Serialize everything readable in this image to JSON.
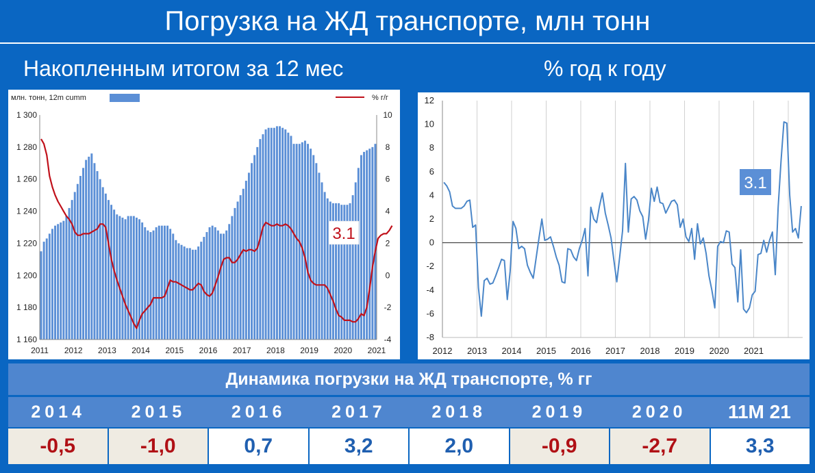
{
  "header": {
    "title": "Погрузка на ЖД транспорте, млн тонн",
    "left_subtitle": "Накопленным итогом за 12 мес",
    "right_subtitle": "% год к году"
  },
  "colors": {
    "background": "#0a66c2",
    "bar_blue": "#5b8fd6",
    "yoy_red": "#c0101a",
    "line_blue": "#4a86c8",
    "neg_cell_bg": "#efebe2",
    "pos_cell_bg": "#ffffff",
    "neg_text": "#b01015",
    "pos_text": "#1f5fb0"
  },
  "chart_data": [
    {
      "type": "bar",
      "unit_label_left": "млн. тонн, 12m cumm",
      "unit_label_right": "% г/г",
      "annotation": "3.1",
      "ylim": [
        1160,
        1300
      ],
      "yticks": [
        "1 160",
        "1 180",
        "1 200",
        "1 220",
        "1 240",
        "1 260",
        "1 280",
        "1 300"
      ],
      "ylim_right": [
        -4,
        10
      ],
      "yticks_right": [
        "-4",
        "-2",
        "0",
        "2",
        "4",
        "6",
        "8",
        "10"
      ],
      "xticks": [
        "2011",
        "2012",
        "2013",
        "2014",
        "2015",
        "2016",
        "2017",
        "2018",
        "2019",
        "2020",
        "2021"
      ],
      "bar_values": [
        1215,
        1221,
        1223,
        1226,
        1229,
        1231,
        1232,
        1233,
        1234,
        1237,
        1242,
        1247,
        1252,
        1257,
        1262,
        1267,
        1272,
        1274,
        1276,
        1270,
        1265,
        1260,
        1255,
        1251,
        1247,
        1244,
        1241,
        1238,
        1237,
        1236,
        1235,
        1237,
        1237,
        1237,
        1236,
        1235,
        1233,
        1230,
        1228,
        1227,
        1228,
        1230,
        1231,
        1231,
        1231,
        1231,
        1229,
        1226,
        1222,
        1220,
        1219,
        1218,
        1217,
        1217,
        1216,
        1216,
        1218,
        1221,
        1224,
        1227,
        1230,
        1231,
        1230,
        1228,
        1226,
        1226,
        1228,
        1232,
        1237,
        1242,
        1246,
        1250,
        1254,
        1259,
        1264,
        1270,
        1275,
        1280,
        1285,
        1288,
        1291,
        1292,
        1292,
        1292,
        1293,
        1293,
        1292,
        1291,
        1289,
        1287,
        1282,
        1282,
        1282,
        1283,
        1284,
        1282,
        1279,
        1275,
        1270,
        1264,
        1258,
        1252,
        1248,
        1246,
        1245,
        1245,
        1245,
        1244,
        1244,
        1244,
        1245,
        1250,
        1258,
        1267,
        1275,
        1277,
        1278,
        1279,
        1280,
        1282
      ],
      "yoy_values": [
        8.5,
        8.2,
        7.5,
        6.2,
        5.5,
        5.0,
        4.6,
        4.3,
        4.0,
        3.7,
        3.5,
        3.2,
        2.7,
        2.5,
        2.5,
        2.6,
        2.6,
        2.6,
        2.7,
        2.8,
        2.9,
        3.2,
        3.2,
        3.0,
        2.0,
        1.0,
        0.3,
        -0.3,
        -0.8,
        -1.3,
        -1.8,
        -2.2,
        -2.6,
        -3.0,
        -3.3,
        -2.8,
        -2.4,
        -2.2,
        -2.0,
        -1.8,
        -1.4,
        -1.4,
        -1.4,
        -1.4,
        -1.3,
        -0.8,
        -0.3,
        -0.4,
        -0.4,
        -0.5,
        -0.6,
        -0.7,
        -0.8,
        -0.9,
        -0.9,
        -0.7,
        -0.5,
        -0.6,
        -1.0,
        -1.2,
        -1.3,
        -1.1,
        -0.6,
        -0.1,
        0.5,
        1.0,
        1.1,
        1.1,
        0.8,
        0.8,
        1.0,
        1.3,
        1.6,
        1.5,
        1.6,
        1.6,
        1.5,
        1.7,
        2.3,
        3.0,
        3.3,
        3.2,
        3.1,
        3.1,
        3.2,
        3.1,
        3.1,
        3.2,
        3.1,
        2.9,
        2.6,
        2.3,
        2.1,
        1.7,
        1.1,
        0.2,
        -0.3,
        -0.5,
        -0.6,
        -0.6,
        -0.6,
        -0.6,
        -0.8,
        -1.2,
        -1.6,
        -2.1,
        -2.5,
        -2.6,
        -2.8,
        -2.8,
        -2.8,
        -2.9,
        -2.9,
        -2.7,
        -2.4,
        -2.5,
        -2.0,
        -0.8,
        0.5,
        1.5,
        2.3,
        2.5,
        2.6,
        2.6,
        2.8,
        3.1
      ]
    },
    {
      "type": "line",
      "annotation": "3.1",
      "ylim": [
        -8,
        12
      ],
      "yticks": [
        "-8",
        "-6",
        "-4",
        "-2",
        "0",
        "2",
        "4",
        "6",
        "8",
        "10",
        "12"
      ],
      "xticks": [
        "2012",
        "2013",
        "2014",
        "2015",
        "2016",
        "2017",
        "2018",
        "2019",
        "2020",
        "2021"
      ],
      "values": [
        5.1,
        4.8,
        4.3,
        3.1,
        2.9,
        2.9,
        2.9,
        3.1,
        3.5,
        3.6,
        1.3,
        1.5,
        -3.8,
        -6.2,
        -3.2,
        -3.0,
        -3.5,
        -3.4,
        -2.8,
        -2.1,
        -1.4,
        -1.5,
        -4.8,
        -2.4,
        1.8,
        1.2,
        -0.5,
        -0.3,
        -0.5,
        -1.9,
        -2.5,
        -3.0,
        -1.3,
        0.4,
        2.0,
        0.2,
        0.3,
        0.5,
        -0.3,
        -1.2,
        -1.9,
        -3.3,
        -3.4,
        -0.5,
        -0.6,
        -1.2,
        -1.5,
        -0.5,
        0.2,
        1.2,
        -2.8,
        3.0,
        2.0,
        1.7,
        3.1,
        4.2,
        2.5,
        1.5,
        0.4,
        -1.5,
        -3.3,
        -1.2,
        1.0,
        6.7,
        0.9,
        3.7,
        3.9,
        3.6,
        2.7,
        2.2,
        0.3,
        1.9,
        4.6,
        3.5,
        4.7,
        3.4,
        3.3,
        2.5,
        3.0,
        3.5,
        3.6,
        3.2,
        1.3,
        2.0,
        0.5,
        0.1,
        1.2,
        -1.4,
        1.6,
        -0.1,
        0.4,
        -0.9,
        -2.8,
        -4.0,
        -5.5,
        -0.3,
        0.1,
        0.0,
        1.0,
        0.9,
        -1.8,
        -2.1,
        -5.0,
        -0.6,
        -5.6,
        -5.9,
        -5.5,
        -4.4,
        -4.1,
        -1.0,
        -0.9,
        0.2,
        -0.8,
        0.2,
        0.9,
        -2.7,
        3.0,
        6.9,
        10.2,
        10.1,
        4.0,
        0.9,
        1.2,
        0.4,
        3.1
      ]
    }
  ],
  "dynamics": {
    "title": "Динамика погрузки на ЖД транспорте, % гг",
    "periods": [
      {
        "label": "2014",
        "value": "-0,5",
        "negative": true
      },
      {
        "label": "2015",
        "value": "-1,0",
        "negative": true
      },
      {
        "label": "2016",
        "value": "0,7",
        "negative": false
      },
      {
        "label": "2017",
        "value": "3,2",
        "negative": false
      },
      {
        "label": "2018",
        "value": "2,0",
        "negative": false
      },
      {
        "label": "2019",
        "value": "-0,9",
        "negative": true
      },
      {
        "label": "2020",
        "value": "-2,7",
        "negative": true
      },
      {
        "label": "11M 21",
        "value": "3,3",
        "negative": false
      }
    ]
  }
}
